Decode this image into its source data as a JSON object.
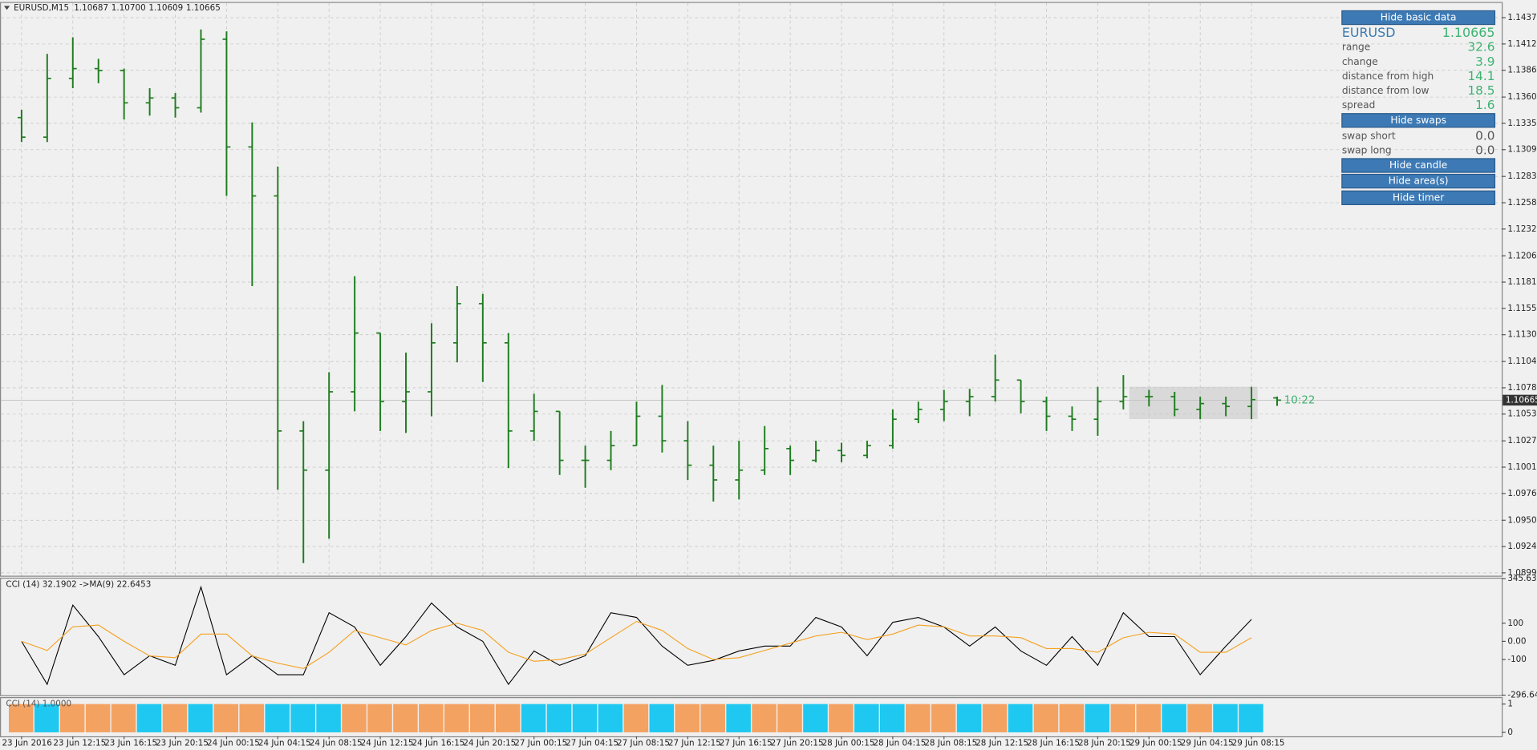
{
  "header": {
    "symbol": "EURUSD,M15",
    "ohlc": [
      "1.10687",
      "1.10700",
      "1.10609",
      "1.10665"
    ]
  },
  "info_panel": {
    "buttons": [
      "Hide basic data",
      "Hide swaps",
      "Hide candle",
      "Hide area(s)",
      "Hide timer"
    ],
    "symbol": "EURUSD",
    "price": "1.10665",
    "rows": [
      [
        "range",
        "32.6"
      ],
      [
        "change",
        "3.9"
      ],
      [
        "distance from high",
        "14.1"
      ],
      [
        "distance from low",
        "18.5"
      ],
      [
        "spread",
        "1.6"
      ]
    ],
    "swaps": [
      [
        "swap short",
        "0.0"
      ],
      [
        "swap long",
        "0.0"
      ]
    ],
    "timer": "10:22"
  },
  "chart_data": {
    "type": "ohlc",
    "color": "#1e7d1e",
    "grid": true,
    "categories": [
      "23 Jun 2016",
      null,
      "23 Jun 12:15",
      null,
      "23 Jun 16:15",
      null,
      "23 Jun 20:15",
      null,
      "24 Jun 00:15",
      null,
      "24 Jun 04:15",
      null,
      "24 Jun 08:15",
      null,
      "24 Jun 12:15",
      null,
      "24 Jun 16:15",
      null,
      "24 Jun 20:15",
      null,
      "27 Jun 00:15",
      null,
      "27 Jun 04:15",
      null,
      "27 Jun 08:15",
      null,
      "27 Jun 12:15",
      null,
      "27 Jun 16:15",
      null,
      "27 Jun 20:15",
      null,
      "28 Jun 00:15",
      null,
      "28 Jun 04:15",
      null,
      "28 Jun 08:15",
      null,
      "28 Jun 12:15",
      null,
      "28 Jun 16:15",
      null,
      "28 Jun 20:15",
      null,
      "29 Jun 00:15",
      null,
      "29 Jun 04:15",
      null,
      "29 Jun 08:15",
      null
    ],
    "open": [
      1.13406,
      1.13216,
      1.13786,
      1.13881,
      1.13862,
      1.13549,
      1.13596,
      1.13501,
      1.14166,
      1.13121,
      1.12646,
      1.10366,
      1.09986,
      1.10746,
      1.11316,
      1.10651,
      1.10746,
      1.11221,
      1.11601,
      1.11221,
      1.10366,
      1.10556,
      1.10081,
      1.10081,
      1.10224,
      1.10509,
      1.10271,
      1.10034,
      1.09891,
      1.09986,
      1.10195,
      1.10081,
      1.10176,
      1.10129,
      1.10224,
      1.1048,
      1.10575,
      1.10651,
      1.10699,
      1.1086,
      1.10651,
      1.10509,
      1.1048,
      1.10651,
      1.10699,
      1.10699,
      1.10575,
      1.10632,
      1.10604,
      1.10687
    ],
    "high": [
      1.13482,
      1.14024,
      1.14185,
      1.13976,
      1.13881,
      1.13691,
      1.13644,
      1.14261,
      1.14242,
      1.13359,
      1.12931,
      1.10461,
      1.10936,
      1.11867,
      1.11316,
      1.11126,
      1.11411,
      1.11772,
      1.11696,
      1.11316,
      1.10727,
      1.10556,
      1.10224,
      1.10366,
      1.10651,
      1.10813,
      1.10461,
      1.10224,
      1.10271,
      1.10414,
      1.10224,
      1.10271,
      1.10252,
      1.10271,
      1.10575,
      1.10651,
      1.10765,
      1.10775,
      1.11107,
      1.1086,
      1.10699,
      1.10604,
      1.10794,
      1.10908,
      1.10765,
      1.10746,
      1.10699,
      1.10699,
      1.10794,
      1.107
    ],
    "low": [
      1.13169,
      1.13169,
      1.13691,
      1.13739,
      1.13387,
      1.13425,
      1.13406,
      1.13454,
      1.12646,
      1.11772,
      1.09796,
      1.09084,
      1.09321,
      1.10556,
      1.10366,
      1.10347,
      1.10509,
      1.11031,
      1.10841,
      1.10005,
      1.10271,
      1.09939,
      1.09815,
      1.09986,
      1.10224,
      1.10157,
      1.09891,
      1.09682,
      1.09701,
      1.09939,
      1.09939,
      1.10062,
      1.10062,
      1.101,
      1.10195,
      1.10442,
      1.10461,
      1.10509,
      1.10651,
      1.10537,
      1.10366,
      1.10366,
      1.10319,
      1.10575,
      1.10604,
      1.10509,
      1.1048,
      1.10509,
      1.1048,
      1.10609
    ],
    "close": [
      1.13216,
      1.13786,
      1.13881,
      1.13862,
      1.13549,
      1.13596,
      1.13501,
      1.14166,
      1.13121,
      1.12646,
      1.10366,
      1.09986,
      1.10746,
      1.11316,
      1.10651,
      1.10746,
      1.11221,
      1.11601,
      1.11221,
      1.10366,
      1.10556,
      1.10081,
      1.10081,
      1.10224,
      1.10509,
      1.10271,
      1.10034,
      1.09891,
      1.09986,
      1.10195,
      1.10081,
      1.10176,
      1.10129,
      1.10224,
      1.1048,
      1.10575,
      1.10651,
      1.10699,
      1.1086,
      1.10651,
      1.10509,
      1.1048,
      1.10651,
      1.10699,
      1.10699,
      1.10575,
      1.10632,
      1.10604,
      1.1067,
      1.10665
    ],
    "ylim": [
      1.08962,
      1.14518
    ],
    "yticks": [
      1.14375,
      {
        "value": 1.1412,
        "label": "1.14120"
      },
      1.13865,
      1.13605,
      {
        "value": 1.1335,
        "label": "1.13350"
      },
      1.13095,
      1.12835,
      {
        "value": 1.1258,
        "label": "1.12580"
      },
      1.12325,
      1.12065,
      {
        "value": 1.1181,
        "label": "1.11810"
      },
      1.11555,
      {
        "value": 1.113,
        "label": "1.11300"
      },
      {
        "value": 1.1104,
        "label": "1.11040"
      },
      1.10785,
      {
        "value": 1.1053,
        "label": "1.10530"
      },
      {
        "value": 1.1027,
        "label": "1.10270"
      },
      1.10015,
      {
        "value": 1.0976,
        "label": "1.09760"
      },
      {
        "value": 1.095,
        "label": "1.09500"
      },
      1.09245,
      {
        "value": 1.0899,
        "label": "1.08990"
      }
    ],
    "panels": [
      {
        "type": "line",
        "label": "CCI (14) 32.1902  ->MA(9) 22.6453",
        "ylim": [
          -296.6458,
          345.6363
        ],
        "yticks": [
          345.6363,
          100,
          {
            "value": 0,
            "label": "0.00"
          },
          -100,
          -296.6458
        ],
        "series": [
          {
            "color": "#000000",
            "values": [
              0,
              -237,
              200,
              26,
              -184,
              -79,
              -132,
              300,
              -184,
              -79,
              -184,
              -184,
              158,
              79,
              -132,
              26,
              211,
              79,
              0,
              -237,
              -53,
              -132,
              -79,
              158,
              132,
              -26,
              -132,
              -105,
              -53,
              -26,
              -26,
              132,
              79,
              -79,
              105,
              132,
              79,
              -26,
              79,
              -53,
              -132,
              26,
              -132,
              158,
              26,
              26,
              -184,
              -26,
              121,
              null
            ]
          },
          {
            "color": "#f5a01e",
            "values": [
              0,
              -50,
              80,
              90,
              0,
              -80,
              -90,
              40,
              40,
              -80,
              -120,
              -150,
              -60,
              60,
              20,
              -20,
              60,
              100,
              60,
              -60,
              -110,
              -100,
              -70,
              20,
              110,
              60,
              -40,
              -100,
              -90,
              -50,
              -10,
              30,
              50,
              10,
              40,
              90,
              80,
              30,
              30,
              20,
              -40,
              -40,
              -60,
              20,
              50,
              40,
              -60,
              -60,
              20,
              null
            ]
          }
        ]
      },
      {
        "type": "bar",
        "label": "CCI (14) 1.0000",
        "ylim": [
          -0.14,
          1.21
        ],
        "yticks": [
          1,
          0
        ],
        "values": [
          1,
          1,
          1,
          1,
          1,
          1,
          1,
          1,
          1,
          1,
          1,
          1,
          1,
          1,
          1,
          1,
          1,
          1,
          1,
          1,
          1,
          1,
          1,
          1,
          1,
          1,
          1,
          1,
          1,
          1,
          1,
          1,
          1,
          1,
          1,
          1,
          1,
          1,
          1,
          1,
          1,
          1,
          1,
          1,
          1,
          1,
          1,
          1,
          1,
          null
        ],
        "colors": [
          "#f4a261",
          "#1ec8f0",
          "#f4a261",
          "#f4a261",
          "#f4a261",
          "#1ec8f0",
          "#f4a261",
          "#1ec8f0",
          "#f4a261",
          "#f4a261",
          "#1ec8f0",
          "#1ec8f0",
          "#1ec8f0",
          "#f4a261",
          "#f4a261",
          "#f4a261",
          "#f4a261",
          "#f4a261",
          "#f4a261",
          "#f4a261",
          "#1ec8f0",
          "#1ec8f0",
          "#1ec8f0",
          "#1ec8f0",
          "#f4a261",
          "#1ec8f0",
          "#f4a261",
          "#f4a261",
          "#1ec8f0",
          "#f4a261",
          "#f4a261",
          "#1ec8f0",
          "#f4a261",
          "#1ec8f0",
          "#1ec8f0",
          "#f4a261",
          "#f4a261",
          "#1ec8f0",
          "#f4a261",
          "#1ec8f0",
          "#f4a261",
          "#f4a261",
          "#1ec8f0",
          "#f4a261",
          "#f4a261",
          "#1ec8f0",
          "#f4a261",
          "#1ec8f0",
          "#1ec8f0",
          null
        ]
      }
    ]
  }
}
